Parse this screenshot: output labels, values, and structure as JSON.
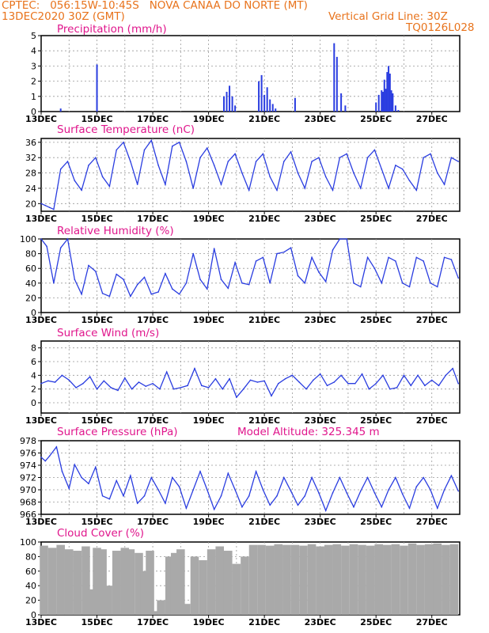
{
  "header": {
    "line1_left": "CPTEC:   056:15W-10:45S   NOVA CANAA DO NORTE (MT)",
    "line2_left": "13DEC2020 30Z (GMT)",
    "line2_right": "Vertical Grid Line: 30Z",
    "line3_right": "TQ0126L028"
  },
  "colors": {
    "header": "#e8731c",
    "title": "#e0168c",
    "line": "#2a3de0",
    "cloud": "#a9a9a9",
    "grid": "#999999"
  },
  "chart_data": [
    {
      "type": "bar",
      "title": "Precipitation (mm/h)",
      "ylim": [
        0,
        5
      ],
      "yticks": [
        0,
        1,
        2,
        3,
        4,
        5
      ],
      "xticks": [
        "13DEC",
        "15DEC",
        "17DEC",
        "19DEC",
        "21DEC",
        "23DEC",
        "25DEC",
        "27DEC"
      ],
      "series": [
        {
          "x": [
            0.7,
            2.0,
            6.55,
            6.65,
            6.75,
            6.85,
            6.95,
            7.8,
            7.9,
            8.0,
            8.1,
            8.2,
            8.3,
            8.4,
            9.1,
            10.5,
            10.6,
            10.75,
            10.9,
            12.0,
            12.1,
            12.2,
            12.25,
            12.3,
            12.35,
            12.4,
            12.45,
            12.5,
            12.55,
            12.6,
            12.7,
            12.8
          ],
          "values": [
            0.2,
            3.1,
            1.0,
            1.3,
            1.7,
            1.0,
            0.4,
            2.0,
            2.4,
            1.1,
            1.6,
            0.8,
            0.5,
            0.2,
            0.9,
            4.5,
            3.6,
            1.2,
            0.4,
            0.6,
            1.1,
            1.4,
            1.3,
            2.1,
            1.5,
            2.6,
            3.0,
            2.5,
            1.4,
            1.2,
            0.4,
            0.1
          ]
        }
      ]
    },
    {
      "type": "line",
      "title": "Surface Temperature (nC)",
      "ylim": [
        18,
        37
      ],
      "yticks": [
        20,
        24,
        28,
        32,
        36
      ],
      "xticks": [
        "13DEC",
        "15DEC",
        "17DEC",
        "19DEC",
        "21DEC",
        "23DEC",
        "25DEC",
        "27DEC"
      ],
      "series": [
        {
          "x": [
            0,
            0.15,
            0.3,
            0.45,
            0.7,
            0.95,
            1.2,
            1.45,
            1.7,
            1.95,
            2.2,
            2.45,
            2.7,
            2.95,
            3.2,
            3.45,
            3.7,
            3.95,
            4.2,
            4.45,
            4.7,
            4.95,
            5.2,
            5.45,
            5.7,
            5.95,
            6.2,
            6.45,
            6.7,
            6.95,
            7.2,
            7.45,
            7.7,
            7.95,
            8.2,
            8.45,
            8.7,
            8.95,
            9.2,
            9.45,
            9.7,
            9.95,
            10.2,
            10.45,
            10.7,
            10.95,
            11.2,
            11.45,
            11.7,
            11.95,
            12.2,
            12.45,
            12.7,
            12.95,
            13.2,
            13.45,
            13.7,
            13.95,
            14.2,
            14.45,
            14.7,
            14.95
          ],
          "values": [
            20,
            19.5,
            19,
            18.5,
            29,
            31,
            26,
            23.5,
            30,
            32,
            27,
            24.5,
            34,
            36,
            31,
            25,
            34,
            36.5,
            30,
            25,
            35,
            36,
            31,
            24,
            32,
            34.5,
            30,
            25,
            31,
            33,
            28,
            23.5,
            31,
            33,
            27,
            23.5,
            31,
            33.5,
            28,
            24,
            31,
            32,
            27,
            23.5,
            32,
            33,
            28,
            24,
            32,
            34,
            29,
            24,
            30,
            29,
            26,
            23.5,
            32,
            33,
            28,
            25,
            32,
            31
          ]
        }
      ]
    },
    {
      "type": "line",
      "title": "Relative Humidity (%)",
      "ylim": [
        0,
        100
      ],
      "yticks": [
        0,
        20,
        40,
        60,
        80,
        100
      ],
      "xticks": [
        "13DEC",
        "15DEC",
        "17DEC",
        "19DEC",
        "21DEC",
        "23DEC",
        "25DEC",
        "27DEC"
      ],
      "series": [
        {
          "x": [
            0,
            0.2,
            0.45,
            0.7,
            0.95,
            1.2,
            1.45,
            1.7,
            1.95,
            2.2,
            2.45,
            2.7,
            2.95,
            3.2,
            3.45,
            3.7,
            3.95,
            4.2,
            4.45,
            4.7,
            4.95,
            5.2,
            5.45,
            5.7,
            5.95,
            6.2,
            6.45,
            6.7,
            6.95,
            7.2,
            7.45,
            7.7,
            7.95,
            8.2,
            8.45,
            8.7,
            8.95,
            9.2,
            9.45,
            9.7,
            9.95,
            10.2,
            10.45,
            10.7,
            10.95,
            11.2,
            11.45,
            11.7,
            11.95,
            12.2,
            12.45,
            12.7,
            12.95,
            13.2,
            13.45,
            13.7,
            13.95,
            14.2,
            14.45,
            14.7,
            14.95
          ],
          "values": [
            100,
            90,
            40,
            88,
            100,
            45,
            25,
            64,
            56,
            26,
            22,
            52,
            45,
            22,
            38,
            48,
            25,
            28,
            53,
            32,
            25,
            40,
            80,
            45,
            32,
            87,
            45,
            33,
            68,
            40,
            38,
            70,
            75,
            40,
            80,
            82,
            88,
            50,
            40,
            75,
            55,
            42,
            85,
            100,
            100,
            40,
            35,
            75,
            60,
            40,
            75,
            70,
            40,
            35,
            75,
            70,
            40,
            35,
            75,
            72,
            47
          ]
        }
      ]
    },
    {
      "type": "line",
      "title": "Surface Wind (m/s)",
      "ylim": [
        -1.5,
        9
      ],
      "yticks": [
        0,
        2,
        4,
        6,
        8
      ],
      "xticks": [
        "13DEC",
        "15DEC",
        "17DEC",
        "19DEC",
        "21DEC",
        "23DEC",
        "25DEC",
        "27DEC"
      ],
      "series": [
        {
          "x": [
            0,
            0.25,
            0.5,
            0.75,
            1.0,
            1.25,
            1.5,
            1.75,
            2.0,
            2.25,
            2.5,
            2.75,
            3.0,
            3.25,
            3.5,
            3.75,
            4.0,
            4.25,
            4.5,
            4.75,
            5.0,
            5.25,
            5.5,
            5.75,
            6.0,
            6.25,
            6.5,
            6.75,
            7.0,
            7.25,
            7.5,
            7.75,
            8.0,
            8.25,
            8.5,
            8.75,
            9.0,
            9.25,
            9.5,
            9.75,
            10.0,
            10.25,
            10.5,
            10.75,
            11.0,
            11.25,
            11.5,
            11.75,
            12.0,
            12.25,
            12.5,
            12.75,
            13.0,
            13.25,
            13.5,
            13.75,
            14.0,
            14.25,
            14.5,
            14.75,
            14.95
          ],
          "values": [
            2.8,
            3.2,
            3.0,
            4.0,
            3.3,
            2.2,
            2.8,
            3.8,
            2.0,
            3.2,
            2.2,
            1.8,
            3.6,
            2.0,
            3.0,
            2.4,
            2.8,
            2.0,
            4.5,
            2.0,
            2.2,
            2.5,
            5.0,
            2.5,
            2.2,
            3.5,
            2.0,
            3.5,
            0.8,
            2.0,
            3.3,
            3.0,
            3.2,
            1.0,
            2.8,
            3.5,
            4.0,
            3.0,
            2.0,
            3.3,
            4.2,
            2.5,
            3.0,
            4.0,
            2.8,
            2.8,
            4.2,
            2.0,
            2.8,
            4.0,
            2.0,
            2.2,
            4.0,
            2.5,
            4.0,
            2.5,
            3.3,
            2.5,
            4.0,
            5.0,
            2.8
          ]
        }
      ]
    },
    {
      "type": "line",
      "title": "Surface Pressure (hPa)",
      "annotation": "Model Altitude: 325.345 m",
      "ylim": [
        966,
        978
      ],
      "yticks": [
        966,
        968,
        970,
        972,
        974,
        976,
        978
      ],
      "xticks": [
        "13DEC",
        "15DEC",
        "17DEC",
        "19DEC",
        "21DEC",
        "23DEC",
        "25DEC",
        "27DEC"
      ],
      "series": [
        {
          "x": [
            0,
            0.15,
            0.3,
            0.55,
            0.75,
            1.0,
            1.2,
            1.45,
            1.7,
            1.95,
            2.2,
            2.45,
            2.7,
            2.95,
            3.2,
            3.45,
            3.7,
            3.95,
            4.2,
            4.45,
            4.7,
            4.95,
            5.2,
            5.45,
            5.7,
            5.95,
            6.2,
            6.45,
            6.7,
            6.95,
            7.2,
            7.45,
            7.7,
            7.95,
            8.2,
            8.45,
            8.7,
            8.95,
            9.2,
            9.45,
            9.7,
            9.95,
            10.2,
            10.45,
            10.7,
            10.95,
            11.2,
            11.45,
            11.7,
            11.95,
            12.2,
            12.45,
            12.7,
            12.95,
            13.2,
            13.45,
            13.7,
            13.95,
            14.2,
            14.45,
            14.7,
            14.95
          ],
          "values": [
            975.3,
            974.7,
            975.5,
            977,
            973,
            970.2,
            974.1,
            972,
            971,
            973.7,
            969,
            968.5,
            971.5,
            969,
            972.3,
            967.8,
            969,
            972,
            970,
            967.8,
            972,
            970.5,
            967,
            970,
            973,
            970,
            966.8,
            969,
            972.7,
            970,
            967.2,
            969,
            973,
            970,
            967.5,
            969,
            972,
            969.8,
            967.5,
            969,
            972,
            969.5,
            966.6,
            969.5,
            972,
            969.5,
            967.2,
            969.8,
            972,
            969.5,
            967.2,
            970,
            972,
            969.3,
            967,
            970.5,
            972,
            970,
            967,
            970,
            972.3,
            969.8
          ]
        }
      ]
    },
    {
      "type": "bar",
      "title": "Cloud Cover (%)",
      "ylim": [
        0,
        100
      ],
      "yticks": [
        0,
        20,
        40,
        60,
        80,
        100
      ],
      "xticks": [
        "13DEC",
        "15DEC",
        "17DEC",
        "19DEC",
        "21DEC",
        "23DEC",
        "25DEC",
        "27DEC"
      ],
      "series": [
        {
          "x": [
            0.1,
            0.4,
            0.7,
            1.0,
            1.3,
            1.6,
            1.8,
            2.0,
            2.2,
            2.4,
            2.7,
            3.0,
            3.2,
            3.5,
            3.7,
            3.9,
            4.1,
            4.3,
            4.6,
            4.8,
            5.0,
            5.2,
            5.5,
            5.8,
            6.1,
            6.4,
            6.7,
            7.0,
            7.3,
            7.6,
            7.9,
            8.2,
            8.5,
            8.8,
            9.1,
            9.4,
            9.7,
            10.0,
            10.3,
            10.6,
            10.9,
            11.2,
            11.5,
            11.8,
            12.1,
            12.4,
            12.7,
            13.0,
            13.3,
            13.6,
            13.9,
            14.2,
            14.5,
            14.8
          ],
          "values": [
            95,
            92,
            96,
            90,
            88,
            94,
            35,
            92,
            90,
            40,
            88,
            92,
            90,
            85,
            60,
            88,
            5,
            20,
            80,
            85,
            90,
            15,
            80,
            75,
            90,
            94,
            88,
            70,
            80,
            96,
            96,
            95,
            97,
            96,
            96,
            95,
            97,
            94,
            96,
            97,
            95,
            97,
            96,
            95,
            97,
            96,
            97,
            95,
            98,
            96,
            97,
            98,
            96,
            97
          ]
        }
      ]
    }
  ]
}
